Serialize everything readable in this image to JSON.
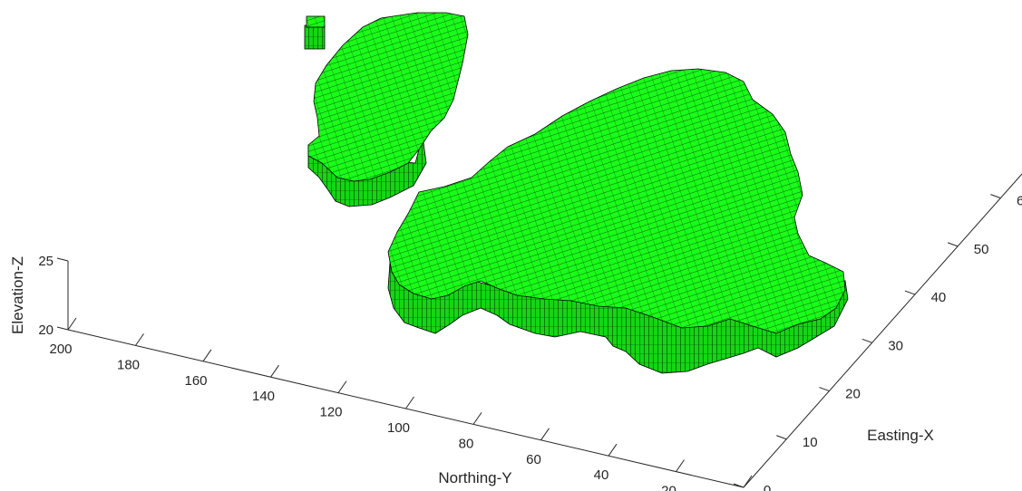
{
  "chart_data": {
    "type": "3d-voxel",
    "title": "",
    "xlabel": "Easting-X",
    "ylabel": "Northing-Y",
    "zlabel": "Elevation-Z",
    "x_ticks": [
      "0",
      "10",
      "20",
      "30",
      "40",
      "50",
      "60"
    ],
    "y_ticks": [
      "0",
      "20",
      "40",
      "60",
      "80",
      "100",
      "120",
      "140",
      "160",
      "180",
      "200"
    ],
    "z_ticks": [
      "20",
      "25"
    ],
    "xlim": [
      0,
      65
    ],
    "ylim": [
      0,
      200
    ],
    "zlim": [
      20,
      25
    ],
    "grid": false,
    "legend": "none",
    "voxel_color": "#19ff19",
    "voxel_edge_color": "#000000",
    "bodies": [
      {
        "label": "large body",
        "easting_range": [
          3,
          60
        ],
        "northing_range": [
          50,
          125
        ]
      },
      {
        "label": "small body",
        "easting_range": [
          40,
          65
        ],
        "northing_range": [
          150,
          195
        ]
      },
      {
        "label": "isolated block",
        "easting_range": [
          63,
          65
        ],
        "northing_range": [
          185,
          190
        ]
      }
    ]
  }
}
